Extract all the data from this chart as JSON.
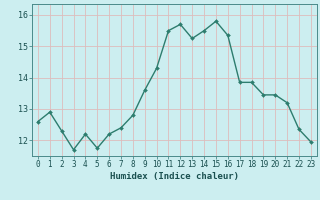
{
  "x": [
    0,
    1,
    2,
    3,
    4,
    5,
    6,
    7,
    8,
    9,
    10,
    11,
    12,
    13,
    14,
    15,
    16,
    17,
    18,
    19,
    20,
    21,
    22,
    23
  ],
  "y": [
    12.6,
    12.9,
    12.3,
    11.7,
    12.2,
    11.75,
    12.2,
    12.4,
    12.8,
    13.6,
    14.3,
    15.5,
    15.7,
    15.25,
    15.5,
    15.8,
    15.35,
    13.85,
    13.85,
    13.45,
    13.45,
    13.2,
    12.35,
    11.95
  ],
  "line_color": "#2d7d6e",
  "marker": "D",
  "marker_size": 2.0,
  "bg_color": "#cceef0",
  "grid_color": "#ddbcbc",
  "xlabel": "Humidex (Indice chaleur)",
  "ylim": [
    11.5,
    16.35
  ],
  "yticks": [
    12,
    13,
    14,
    15,
    16
  ],
  "xlim": [
    -0.5,
    23.5
  ],
  "xticks": [
    0,
    1,
    2,
    3,
    4,
    5,
    6,
    7,
    8,
    9,
    10,
    11,
    12,
    13,
    14,
    15,
    16,
    17,
    18,
    19,
    20,
    21,
    22,
    23
  ],
  "tick_fontsize": 5.5,
  "xlabel_fontsize": 6.5,
  "linewidth": 1.0
}
